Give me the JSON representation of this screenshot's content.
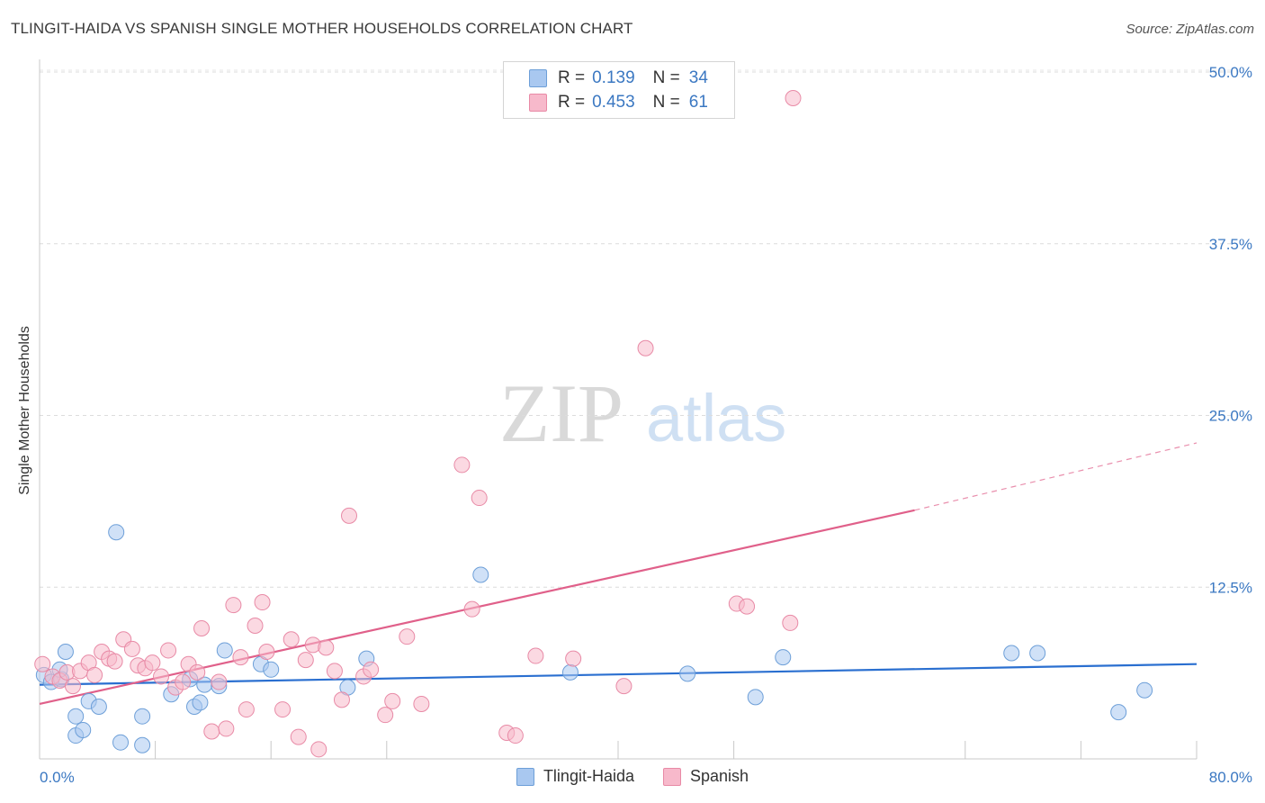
{
  "chart_data": {
    "type": "scatter",
    "title": "TLINGIT-HAIDA VS SPANISH SINGLE MOTHER HOUSEHOLDS CORRELATION CHART",
    "source": "Source: ZipAtlas.com",
    "watermark": {
      "zip": "ZIP",
      "atlas": "atlas"
    },
    "xlabel": "",
    "ylabel": "Single Mother Households",
    "xlim": [
      0,
      80
    ],
    "ylim": [
      0,
      52
    ],
    "x_tick_labels": {
      "left": "0.0%",
      "right": "80.0%"
    },
    "y_ticks": [
      {
        "value": 12.5,
        "label": "12.5%"
      },
      {
        "value": 25.0,
        "label": "25.0%"
      },
      {
        "value": 37.5,
        "label": "37.5%"
      },
      {
        "value": 50.0,
        "label": "50.0%"
      }
    ],
    "x_ticks": [
      0,
      8,
      16,
      24,
      40,
      48,
      64,
      72,
      80
    ],
    "grid": true,
    "legend": [
      {
        "r_label": "R =",
        "r_value": "0.139",
        "n_label": "N =",
        "n_value": "34",
        "color": "#a9c8f0"
      },
      {
        "r_label": "R =",
        "r_value": "0.453",
        "n_label": "N =",
        "n_value": "61",
        "color": "#f7b9cb"
      }
    ],
    "series": [
      {
        "name": "Tlingit-Haida",
        "color": "#a9c8f0",
        "edge": "#6d9fd8",
        "trend_color": "#2a6fd0",
        "trend": {
          "x0": 0,
          "y0": 5.4,
          "x1": 80,
          "y1": 6.9
        },
        "points": [
          [
            0.3,
            6.1
          ],
          [
            0.8,
            5.6
          ],
          [
            1.5,
            5.8
          ],
          [
            1.4,
            6.5
          ],
          [
            1.8,
            7.8
          ],
          [
            2.5,
            3.1
          ],
          [
            2.5,
            1.7
          ],
          [
            3.0,
            2.1
          ],
          [
            3.4,
            4.2
          ],
          [
            4.1,
            3.8
          ],
          [
            5.3,
            16.5
          ],
          [
            5.6,
            1.2
          ],
          [
            7.1,
            3.1
          ],
          [
            7.1,
            1.0
          ],
          [
            9.1,
            4.7
          ],
          [
            10.4,
            5.8
          ],
          [
            10.7,
            3.8
          ],
          [
            11.1,
            4.1
          ],
          [
            11.4,
            5.4
          ],
          [
            12.4,
            5.3
          ],
          [
            12.8,
            7.9
          ],
          [
            15.3,
            6.9
          ],
          [
            16.0,
            6.5
          ],
          [
            21.3,
            5.2
          ],
          [
            22.6,
            7.3
          ],
          [
            30.5,
            13.4
          ],
          [
            36.7,
            6.3
          ],
          [
            44.8,
            6.2
          ],
          [
            49.5,
            4.5
          ],
          [
            51.4,
            7.4
          ],
          [
            67.2,
            7.7
          ],
          [
            69.0,
            7.7
          ],
          [
            74.6,
            3.4
          ],
          [
            76.4,
            5.0
          ]
        ]
      },
      {
        "name": "Spanish",
        "color": "#f7b9cb",
        "edge": "#e88aa6",
        "trend_color": "#e0608a",
        "trend": {
          "x0": 0,
          "y0": 4.0,
          "x1": 60.5,
          "y1": 18.1
        },
        "trend_dash": {
          "x0": 60.5,
          "y0": 18.1,
          "x1": 80,
          "y1": 23.0
        },
        "points": [
          [
            0.2,
            6.9
          ],
          [
            0.9,
            6.0
          ],
          [
            1.4,
            5.7
          ],
          [
            1.9,
            6.3
          ],
          [
            2.3,
            5.3
          ],
          [
            2.8,
            6.4
          ],
          [
            3.4,
            7.0
          ],
          [
            3.8,
            6.1
          ],
          [
            4.3,
            7.8
          ],
          [
            4.8,
            7.3
          ],
          [
            5.2,
            7.1
          ],
          [
            5.8,
            8.7
          ],
          [
            6.4,
            8.0
          ],
          [
            6.8,
            6.8
          ],
          [
            7.3,
            6.6
          ],
          [
            7.8,
            7.0
          ],
          [
            8.4,
            6.0
          ],
          [
            8.9,
            7.9
          ],
          [
            9.4,
            5.2
          ],
          [
            9.9,
            5.6
          ],
          [
            10.3,
            6.9
          ],
          [
            10.9,
            6.3
          ],
          [
            11.2,
            9.5
          ],
          [
            11.9,
            2.0
          ],
          [
            12.4,
            5.6
          ],
          [
            12.9,
            2.2
          ],
          [
            13.4,
            11.2
          ],
          [
            13.9,
            7.4
          ],
          [
            14.3,
            3.6
          ],
          [
            14.9,
            9.7
          ],
          [
            15.4,
            11.4
          ],
          [
            15.7,
            7.8
          ],
          [
            16.8,
            3.6
          ],
          [
            17.4,
            8.7
          ],
          [
            17.9,
            1.6
          ],
          [
            18.4,
            7.2
          ],
          [
            18.9,
            8.3
          ],
          [
            19.3,
            0.7
          ],
          [
            19.8,
            8.1
          ],
          [
            20.4,
            6.4
          ],
          [
            20.9,
            4.3
          ],
          [
            21.4,
            17.7
          ],
          [
            22.4,
            6.0
          ],
          [
            22.9,
            6.5
          ],
          [
            23.9,
            3.2
          ],
          [
            24.4,
            4.2
          ],
          [
            25.4,
            8.9
          ],
          [
            26.4,
            4.0
          ],
          [
            29.2,
            21.4
          ],
          [
            29.9,
            10.9
          ],
          [
            30.4,
            19.0
          ],
          [
            32.3,
            1.9
          ],
          [
            32.9,
            1.7
          ],
          [
            34.3,
            7.5
          ],
          [
            36.9,
            7.3
          ],
          [
            40.4,
            5.3
          ],
          [
            41.9,
            29.9
          ],
          [
            48.2,
            11.3
          ],
          [
            48.9,
            11.1
          ],
          [
            51.9,
            9.9
          ],
          [
            52.1,
            48.1
          ]
        ]
      }
    ]
  },
  "legend_bottom": [
    {
      "label": "Tlingit-Haida",
      "color": "#a9c8f0"
    },
    {
      "label": "Spanish",
      "color": "#f7b9cb"
    }
  ]
}
